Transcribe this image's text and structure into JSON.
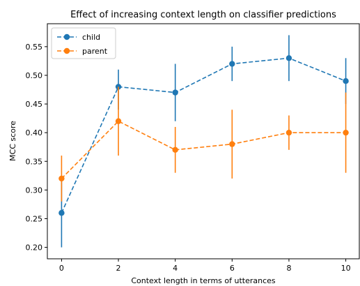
{
  "chart_data": {
    "type": "line",
    "title": "Effect of increasing context length on classifier predictions",
    "xlabel": "Context length in terms of utterances",
    "ylabel": "MCC score",
    "xlim": [
      -0.5,
      10.5
    ],
    "ylim": [
      0.18,
      0.59
    ],
    "xticks": [
      0,
      2,
      4,
      6,
      8,
      10
    ],
    "yticks": [
      0.2,
      0.25,
      0.3,
      0.35,
      0.4,
      0.45,
      0.5,
      0.55
    ],
    "grid": false,
    "legend": "top-left",
    "series": [
      {
        "name": "child",
        "color": "#1f77b4",
        "linestyle": "dashed",
        "marker": "circle",
        "x": [
          0,
          2,
          4,
          6,
          8,
          10
        ],
        "y": [
          0.26,
          0.48,
          0.47,
          0.52,
          0.53,
          0.49
        ],
        "err_low": [
          0.2,
          0.44,
          0.42,
          0.49,
          0.49,
          0.45
        ],
        "err_high": [
          0.32,
          0.51,
          0.52,
          0.55,
          0.57,
          0.53
        ]
      },
      {
        "name": "parent",
        "color": "#ff7f0e",
        "linestyle": "dashed",
        "marker": "circle",
        "x": [
          0,
          2,
          4,
          6,
          8,
          10
        ],
        "y": [
          0.32,
          0.42,
          0.37,
          0.38,
          0.4,
          0.4
        ],
        "err_low": [
          0.28,
          0.36,
          0.33,
          0.32,
          0.37,
          0.33
        ],
        "err_high": [
          0.36,
          0.48,
          0.41,
          0.44,
          0.43,
          0.47
        ]
      }
    ]
  }
}
